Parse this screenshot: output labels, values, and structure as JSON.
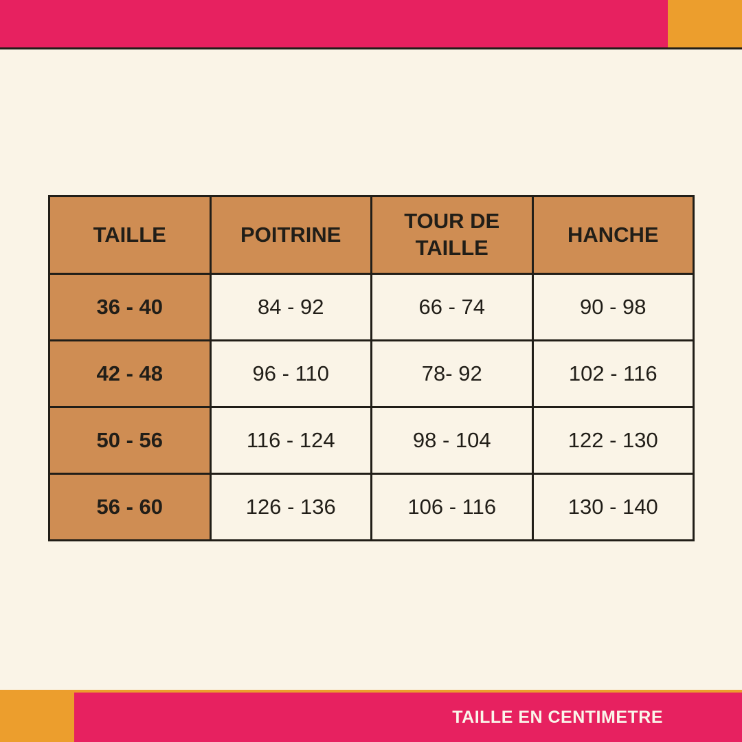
{
  "colors": {
    "pink": "#E72160",
    "orange": "#EC9E2D",
    "tan": "#CF8D53",
    "cream": "#FAF4E7",
    "dark": "#211E18",
    "text_light": "#FAF5EA"
  },
  "chart_data": {
    "type": "table",
    "title": "",
    "columns": [
      "TAILLE",
      "POITRINE",
      "TOUR DE TAILLE",
      "HANCHE"
    ],
    "rows": [
      [
        "36 - 40",
        "84 - 92",
        "66 - 74",
        "90 - 98"
      ],
      [
        "42 - 48",
        "96 - 110",
        "78- 92",
        "102 - 116"
      ],
      [
        "50 - 56",
        "116 - 124",
        "98 - 104",
        "122 - 130"
      ],
      [
        "56 - 60",
        "126 - 136",
        "106 - 116",
        "130 - 140"
      ]
    ]
  },
  "footer": {
    "label": "TAILLE EN CENTIMETRE"
  }
}
